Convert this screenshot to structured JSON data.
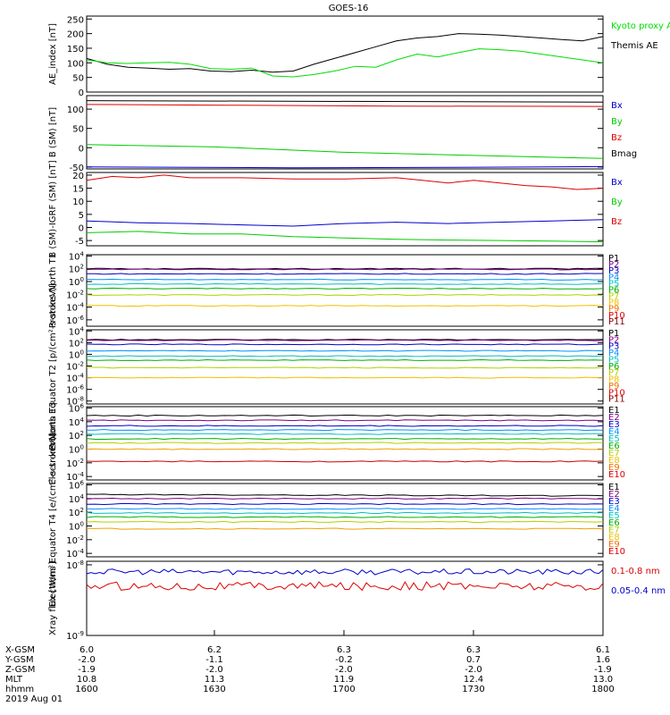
{
  "title": "GOES-16",
  "chart_data": [
    {
      "type": "line",
      "ylabel": "AE_index [nT]",
      "yticks": [
        "250",
        "200",
        "150",
        "100",
        "50",
        "0"
      ],
      "ylim": [
        0,
        260
      ],
      "legend": [
        {
          "label": "Kyoto proxy AE",
          "color": "#00dd00"
        },
        {
          "label": "Themis AE",
          "color": "#000000"
        }
      ],
      "series": [
        {
          "name": "Themis AE",
          "color": "#000000",
          "x": [
            0,
            0.04,
            0.08,
            0.12,
            0.16,
            0.2,
            0.24,
            0.28,
            0.32,
            0.36,
            0.4,
            0.44,
            0.48,
            0.52,
            0.56,
            0.6,
            0.64,
            0.68,
            0.72,
            0.76,
            0.8,
            0.84,
            0.88,
            0.92,
            0.96,
            1
          ],
          "y": [
            115,
            95,
            85,
            82,
            78,
            80,
            72,
            70,
            75,
            68,
            72,
            95,
            115,
            135,
            155,
            175,
            185,
            190,
            200,
            198,
            195,
            190,
            185,
            180,
            175,
            190
          ]
        },
        {
          "name": "Kyoto proxy AE",
          "color": "#00dd00",
          "x": [
            0,
            0.04,
            0.08,
            0.12,
            0.16,
            0.2,
            0.24,
            0.28,
            0.32,
            0.36,
            0.4,
            0.44,
            0.48,
            0.52,
            0.56,
            0.6,
            0.64,
            0.68,
            0.72,
            0.76,
            0.8,
            0.84,
            0.88,
            0.92,
            0.96,
            1
          ],
          "y": [
            110,
            100,
            98,
            100,
            102,
            95,
            80,
            78,
            82,
            55,
            52,
            60,
            72,
            88,
            85,
            110,
            130,
            120,
            135,
            148,
            145,
            140,
            130,
            120,
            110,
            100
          ]
        }
      ]
    },
    {
      "type": "line",
      "ylabel": "B (SM) [nT]",
      "yticks": [
        "100",
        "50",
        "0",
        "-50"
      ],
      "ylim": [
        -55,
        135
      ],
      "legend": [
        {
          "label": "Bx",
          "color": "#0000cc"
        },
        {
          "label": "By",
          "color": "#00cc00"
        },
        {
          "label": "Bz",
          "color": "#dd0000"
        },
        {
          "label": "Bmag",
          "color": "#000000"
        }
      ],
      "series": [
        {
          "name": "Bmag",
          "color": "#000000",
          "x": [
            0,
            1
          ],
          "y": [
            122,
            118
          ]
        },
        {
          "name": "Bz",
          "color": "#dd0000",
          "x": [
            0,
            0.3,
            0.6,
            1
          ],
          "y": [
            112,
            110,
            108,
            107
          ]
        },
        {
          "name": "By",
          "color": "#00cc00",
          "x": [
            0,
            0.25,
            0.5,
            0.75,
            1
          ],
          "y": [
            8,
            2,
            -12,
            -20,
            -28
          ]
        },
        {
          "name": "Bx",
          "color": "#0000cc",
          "x": [
            0,
            0.4,
            0.7,
            1
          ],
          "y": [
            -50,
            -52,
            -51,
            -49
          ]
        }
      ]
    },
    {
      "type": "line",
      "ylabel": "B (SM)-IGRF (SM) [nT]",
      "yticks": [
        "20",
        "15",
        "10",
        "5",
        "0",
        "-5"
      ],
      "ylim": [
        -7,
        21
      ],
      "legend": [
        {
          "label": "Bx",
          "color": "#0000cc"
        },
        {
          "label": "By",
          "color": "#00cc00"
        },
        {
          "label": "Bz",
          "color": "#dd0000"
        }
      ],
      "series": [
        {
          "name": "Bz",
          "color": "#dd0000",
          "x": [
            0,
            0.05,
            0.1,
            0.15,
            0.2,
            0.3,
            0.4,
            0.5,
            0.6,
            0.65,
            0.7,
            0.75,
            0.8,
            0.85,
            0.9,
            0.95,
            1
          ],
          "y": [
            18,
            19.5,
            19,
            20,
            19,
            19,
            18.5,
            18.5,
            19,
            18,
            17,
            18,
            17,
            16,
            15.5,
            14.5,
            15
          ]
        },
        {
          "name": "Bx",
          "color": "#0000cc",
          "x": [
            0,
            0.1,
            0.2,
            0.3,
            0.4,
            0.5,
            0.6,
            0.7,
            0.8,
            0.9,
            1
          ],
          "y": [
            2.5,
            1.8,
            1.5,
            1,
            0.5,
            1.5,
            2,
            1.5,
            2,
            2.5,
            3
          ]
        },
        {
          "name": "By",
          "color": "#00cc00",
          "x": [
            0,
            0.1,
            0.2,
            0.3,
            0.4,
            0.5,
            0.6,
            0.7,
            0.8,
            0.9,
            1
          ],
          "y": [
            -2,
            -1.5,
            -2.5,
            -2.5,
            -3.5,
            -4,
            -4.5,
            -4.8,
            -5,
            -5.2,
            -5.5
          ]
        }
      ]
    },
    {
      "type": "line",
      "ylabel": "Protons North T1",
      "yticks": [
        "10^4",
        "10^2",
        "10^0",
        "10^-2",
        "10^-4",
        "10^-6"
      ],
      "ylim": [
        -7,
        4.2
      ],
      "legend_labels": [
        "P1",
        "P2",
        "P3",
        "P4",
        "P5",
        "P6",
        "P7",
        "P8",
        "P9",
        "P10",
        "P11"
      ],
      "series": [
        {
          "name": "P1",
          "color": "#000000",
          "levels": [
            2.0,
            2.0
          ]
        },
        {
          "name": "P2",
          "color": "#7a0080",
          "levels": [
            1.9,
            1.9
          ]
        },
        {
          "name": "P3",
          "color": "#0000cc",
          "levels": [
            1.2,
            1.2
          ]
        },
        {
          "name": "P4",
          "color": "#0090ff",
          "levels": [
            0.3,
            0.3
          ]
        },
        {
          "name": "P5",
          "color": "#00c0c0",
          "levels": [
            -0.4,
            -0.4
          ]
        },
        {
          "name": "P6",
          "color": "#00b000",
          "levels": [
            -1.1,
            -1.1
          ]
        },
        {
          "name": "P7",
          "color": "#b0d000",
          "levels": [
            -2.1,
            -2.1
          ]
        },
        {
          "name": "P8",
          "color": "#f0c000",
          "levels": [
            -3.8,
            -3.8
          ]
        }
      ]
    },
    {
      "type": "line",
      "ylabel": "Protons Equator T2 [p/(cm²-s-sr-keV)]",
      "yticks": [
        "10^4",
        "10^2",
        "10^0",
        "10^-2",
        "10^-4",
        "10^-6",
        "10^-8"
      ],
      "ylim": [
        -8.5,
        4.2
      ],
      "legend_labels": [
        "P1",
        "P2",
        "P3",
        "P4",
        "P5",
        "P6",
        "P7",
        "P8",
        "P9",
        "P10",
        "P11"
      ],
      "series": [
        {
          "name": "P1",
          "color": "#000000",
          "levels": [
            2.5,
            2.5
          ]
        },
        {
          "name": "P2",
          "color": "#7a0080",
          "levels": [
            2.4,
            2.4
          ]
        },
        {
          "name": "P3",
          "color": "#0000cc",
          "levels": [
            1.7,
            1.7
          ]
        },
        {
          "name": "P4",
          "color": "#0090ff",
          "levels": [
            0.6,
            0.6
          ]
        },
        {
          "name": "P5",
          "color": "#00c0c0",
          "levels": [
            -0.3,
            -0.3
          ]
        },
        {
          "name": "P6",
          "color": "#00b000",
          "levels": [
            -1.0,
            -1.0
          ]
        },
        {
          "name": "P7",
          "color": "#b0d000",
          "levels": [
            -2.3,
            -2.3
          ]
        },
        {
          "name": "P8",
          "color": "#f0c000",
          "levels": [
            -4.0,
            -4.0
          ]
        }
      ]
    },
    {
      "type": "line",
      "ylabel": "Electrons North T3",
      "yticks": [
        "10^6",
        "10^4",
        "10^2",
        "10^0",
        "10^-2",
        "10^-4"
      ],
      "ylim": [
        -4.5,
        6.2
      ],
      "legend_labels": [
        "E1",
        "E2",
        "E3",
        "E4",
        "E5",
        "E6",
        "E7",
        "E8",
        "E9",
        "E10"
      ],
      "series": [
        {
          "name": "E1",
          "color": "#000000",
          "levels": [
            4.9,
            4.9
          ]
        },
        {
          "name": "E2",
          "color": "#7a0080",
          "levels": [
            4.2,
            4.2
          ]
        },
        {
          "name": "E3",
          "color": "#0000cc",
          "levels": [
            3.4,
            3.4
          ]
        },
        {
          "name": "E4",
          "color": "#0090ff",
          "levels": [
            2.8,
            2.8
          ]
        },
        {
          "name": "E5",
          "color": "#00c0c0",
          "levels": [
            2.2,
            2.2
          ]
        },
        {
          "name": "E6",
          "color": "#00b000",
          "levels": [
            1.5,
            1.5
          ]
        },
        {
          "name": "E7",
          "color": "#b0d000",
          "levels": [
            0.9,
            0.9
          ]
        },
        {
          "name": "E8",
          "color": "#f0a000",
          "levels": [
            0.0,
            0.0
          ]
        },
        {
          "name": "E9",
          "color": "#cc0000",
          "levels": [
            -1.8,
            -1.8
          ]
        }
      ]
    },
    {
      "type": "line",
      "ylabel": "Electrons Equator T4 [e/(cm²-s-sr-keV)]",
      "yticks": [
        "10^6",
        "10^4",
        "10^2",
        "10^0",
        "10^-2",
        "10^-4"
      ],
      "ylim": [
        -4.5,
        6.2
      ],
      "legend_labels": [
        "E1",
        "E2",
        "E3",
        "E4",
        "E5",
        "E6",
        "E7",
        "E8",
        "E9",
        "E10"
      ],
      "series": [
        {
          "name": "E1",
          "color": "#000000",
          "levels": [
            4.6,
            4.4
          ]
        },
        {
          "name": "E2",
          "color": "#7a0080",
          "levels": [
            4.0,
            4.0
          ]
        },
        {
          "name": "E3",
          "color": "#0000cc",
          "levels": [
            3.2,
            3.2
          ]
        },
        {
          "name": "E4",
          "color": "#0090ff",
          "levels": [
            2.5,
            2.5
          ]
        },
        {
          "name": "E5",
          "color": "#00c0c0",
          "levels": [
            1.9,
            1.9
          ]
        },
        {
          "name": "E6",
          "color": "#00b000",
          "levels": [
            1.3,
            1.3
          ]
        },
        {
          "name": "E7",
          "color": "#b0d000",
          "levels": [
            0.6,
            0.6
          ]
        },
        {
          "name": "E8",
          "color": "#f0a000",
          "levels": [
            -0.4,
            -0.4
          ]
        }
      ]
    },
    {
      "type": "line",
      "ylabel": "Xray flux [W/m²]",
      "yticks": [
        "10^-8",
        "10^-9"
      ],
      "ylim": [
        -9.0,
        -7.95
      ],
      "legend": [
        {
          "label": "0.1-0.8 nm",
          "color": "#dd0000"
        },
        {
          "label": "0.05-0.4 nm",
          "color": "#0000cc"
        }
      ],
      "series": [
        {
          "name": "0.05-0.4 nm",
          "color": "#0000cc",
          "noise_center": -8.1,
          "noise_amp": 0.04
        },
        {
          "name": "0.1-0.8 nm",
          "color": "#dd0000",
          "noise_center": -8.3,
          "noise_amp": 0.06
        }
      ]
    }
  ],
  "footer": {
    "row_labels": [
      "X-GSM",
      "Y-GSM",
      "Z-GSM",
      "MLT",
      "hhmm",
      "2019 Aug 01"
    ],
    "columns": [
      [
        "6.0",
        "-2.0",
        "-1.9",
        "10.8",
        "1600"
      ],
      [
        "6.2",
        "-1.1",
        "-2.0",
        "11.3",
        "1630"
      ],
      [
        "6.3",
        "-0.2",
        "-2.0",
        "11.9",
        "1700"
      ],
      [
        "6.3",
        "0.7",
        "-2.0",
        "12.4",
        "1730"
      ],
      [
        "6.1",
        "1.6",
        "-1.9",
        "13.0",
        "1800"
      ]
    ]
  }
}
